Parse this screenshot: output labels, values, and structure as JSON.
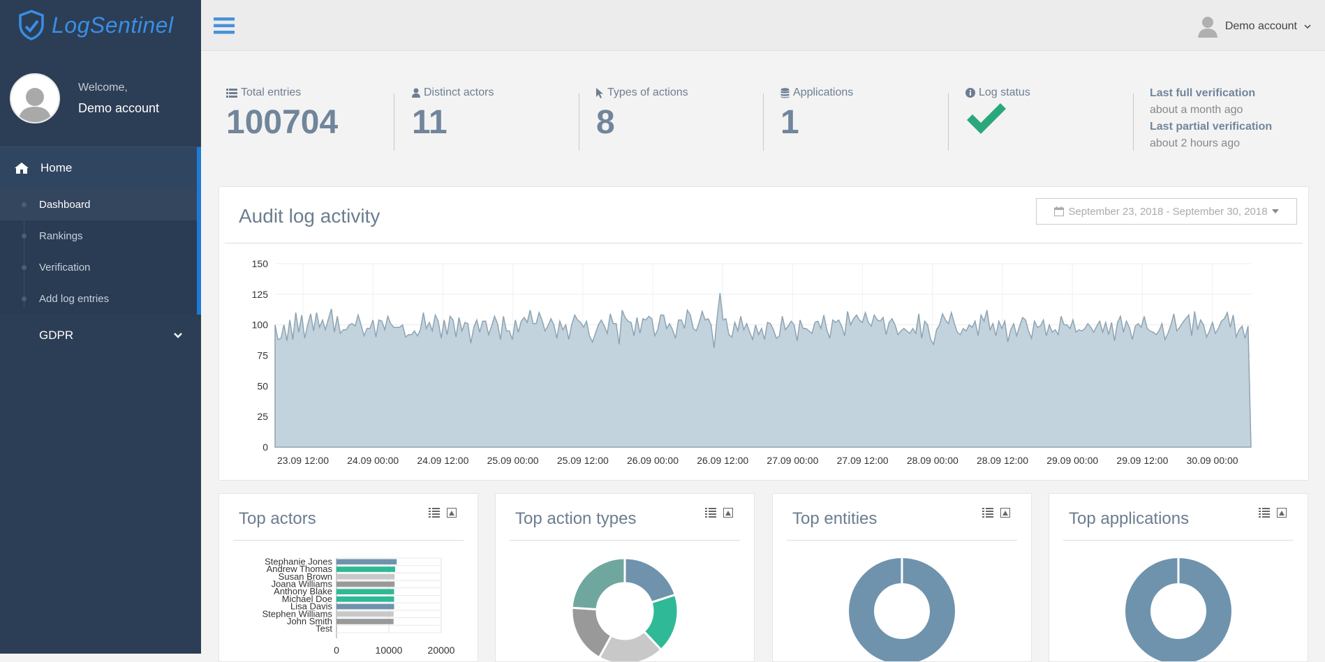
{
  "app": {
    "logo_text": "LogSentinel",
    "brand_color": "#3a8ee6"
  },
  "sidebar": {
    "welcome": "Welcome,",
    "user_name": "Demo account",
    "home_label": "Home",
    "items": [
      {
        "label": "Dashboard",
        "active": true
      },
      {
        "label": "Rankings"
      },
      {
        "label": "Verification"
      },
      {
        "label": "Add log entries"
      }
    ],
    "gdpr_label": "GDPR"
  },
  "topbar": {
    "account_label": "Demo account"
  },
  "stats": {
    "total_entries": {
      "label": "Total entries",
      "value": "100704"
    },
    "distinct_actors": {
      "label": "Distinct actors",
      "value": "11"
    },
    "types_of_actions": {
      "label": "Types of actions",
      "value": "8"
    },
    "applications": {
      "label": "Applications",
      "value": "1"
    },
    "log_status": {
      "label": "Log status",
      "status": "verified",
      "color": "#2aa87c"
    },
    "verification": {
      "full_label": "Last full verification",
      "full_value": "about a month ago",
      "partial_label": "Last partial verification",
      "partial_value": "about 2 hours ago"
    }
  },
  "activity": {
    "title": "Audit log activity",
    "date_range": "September 23, 2018 - September 30, 2018"
  },
  "cards": {
    "top_actors": "Top actors",
    "top_action_types": "Top action types",
    "top_entities": "Top entities",
    "top_applications": "Top applications"
  },
  "chart_data": [
    {
      "type": "area",
      "title": "Audit log activity",
      "ylim": [
        0,
        150
      ],
      "yticks": [
        0,
        25,
        50,
        75,
        100,
        125,
        150
      ],
      "xticks": [
        "23.09 12:00",
        "24.09 00:00",
        "24.09 12:00",
        "25.09 00:00",
        "25.09 12:00",
        "26.09 00:00",
        "26.09 12:00",
        "27.09 00:00",
        "27.09 12:00",
        "28.09 00:00",
        "28.09 12:00",
        "29.09 00:00",
        "29.09 12:00",
        "30.09 00:00"
      ],
      "grid": true,
      "color": "#c3d3dd",
      "stroke": "#8ea3b2",
      "values": [
        100,
        88,
        89,
        100,
        87,
        104,
        88,
        110,
        94,
        108,
        89,
        100,
        109,
        95,
        110,
        98,
        104,
        96,
        105,
        113,
        94,
        107,
        93,
        96,
        96,
        100,
        101,
        99,
        108,
        100,
        91,
        97,
        97,
        104,
        90,
        104,
        103,
        96,
        107,
        101,
        98,
        98,
        98,
        100,
        90,
        92,
        92,
        95,
        91,
        96,
        110,
        97,
        102,
        95,
        108,
        103,
        89,
        104,
        92,
        107,
        104,
        90,
        106,
        95,
        102,
        101,
        85,
        98,
        104,
        94,
        103,
        103,
        92,
        99,
        107,
        101,
        88,
        107,
        95,
        95,
        88,
        104,
        94,
        103,
        106,
        102,
        112,
        101,
        101,
        110,
        104,
        95,
        99,
        105,
        100,
        89,
        103,
        96,
        100,
        88,
        100,
        108,
        104,
        102,
        98,
        103,
        91,
        86,
        93,
        100,
        104,
        99,
        93,
        109,
        101,
        101,
        84,
        112,
        106,
        103,
        102,
        91,
        106,
        93,
        105,
        104,
        107,
        105,
        91,
        96,
        108,
        108,
        97,
        101,
        96,
        89,
        104,
        104,
        97,
        112,
        108,
        97,
        95,
        102,
        111,
        104,
        105,
        100,
        81,
        105,
        126,
        104,
        105,
        92,
        90,
        102,
        95,
        107,
        96,
        101,
        94,
        88,
        100,
        92,
        97,
        88,
        102,
        101,
        96,
        89,
        91,
        107,
        96,
        99,
        103,
        100,
        87,
        104,
        97,
        97,
        95,
        93,
        102,
        103,
        97,
        108,
        96,
        89,
        104,
        102,
        104,
        99,
        91,
        111,
        100,
        105,
        108,
        104,
        102,
        110,
        102,
        99,
        108,
        104,
        103,
        106,
        92,
        102,
        105,
        100,
        92,
        95,
        97,
        95,
        93,
        97,
        93,
        109,
        89,
        103,
        100,
        88,
        84,
        96,
        100,
        109,
        104,
        101,
        110,
        101,
        94,
        92,
        97,
        95,
        100,
        98,
        103,
        91,
        108,
        103,
        112,
        96,
        101,
        91,
        103,
        97,
        103,
        86,
        96,
        101,
        91,
        99,
        106,
        104,
        95,
        89,
        103,
        98,
        99,
        104,
        91,
        100,
        94,
        96,
        92,
        107,
        100,
        100,
        97,
        104,
        94,
        96,
        95,
        97,
        101,
        98,
        94,
        99,
        103,
        94,
        102,
        92,
        102,
        87,
        102,
        107,
        94,
        103,
        98,
        88,
        99,
        101,
        98,
        107,
        97,
        95,
        94,
        92,
        95,
        101,
        88,
        93,
        100,
        109,
        95,
        98,
        102,
        105,
        108,
        91,
        111,
        96,
        104,
        100,
        90,
        95,
        102,
        93,
        97,
        103,
        105,
        110,
        98,
        108,
        90,
        96,
        99,
        89,
        99,
        0
      ]
    },
    {
      "type": "bar",
      "orientation": "horizontal",
      "title": "Top actors",
      "categories": [
        "Stephanie Jones",
        "Andrew Thomas",
        "Susan Brown",
        "Joana Williams",
        "Anthony Blake",
        "Michael Doe",
        "Lisa Davis",
        "Stephen Williams",
        "John Smith",
        "Test"
      ],
      "values": [
        11500,
        11200,
        11100,
        11100,
        11000,
        11000,
        11000,
        10900,
        10900,
        30
      ],
      "colors": [
        "#6f93ad",
        "#2fb996",
        "#c8c8c8",
        "#999999",
        "#2fb996",
        "#2fb996",
        "#6f93ad",
        "#c8c8c8",
        "#999999",
        "#6f93ad"
      ],
      "xticks": [
        0,
        10000,
        20000
      ],
      "xlim": [
        0,
        20000
      ]
    },
    {
      "type": "pie",
      "title": "Top action types",
      "slices": [
        {
          "value": 20,
          "color": "#6f93ad"
        },
        {
          "value": 18,
          "color": "#2fb996"
        },
        {
          "value": 20,
          "color": "#c8c8c8"
        },
        {
          "value": 18,
          "color": "#999999"
        },
        {
          "value": 24,
          "color": "#6fa79e"
        }
      ]
    },
    {
      "type": "pie",
      "title": "Top entities",
      "slices": [
        {
          "value": 100,
          "color": "#6f93ad"
        }
      ]
    },
    {
      "type": "pie",
      "title": "Top applications",
      "slices": [
        {
          "value": 100,
          "color": "#6f93ad"
        }
      ]
    }
  ]
}
